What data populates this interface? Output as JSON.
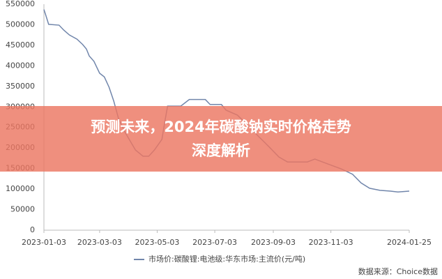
{
  "chart_data": {
    "type": "line",
    "x": [
      "2023-01-03",
      "2023-01-05",
      "2023-01-08",
      "2023-01-19",
      "2023-01-24",
      "2023-01-30",
      "2023-02-07",
      "2023-02-13",
      "2023-02-17",
      "2023-02-20",
      "2023-02-25",
      "2023-03-03",
      "2023-03-08",
      "2023-03-13",
      "2023-03-18",
      "2023-03-23",
      "2023-03-30",
      "2023-04-10",
      "2023-04-18",
      "2023-04-24",
      "2023-04-30",
      "2023-05-08",
      "2023-05-11",
      "2023-05-14",
      "2023-05-28",
      "2023-06-06",
      "2023-06-23",
      "2023-06-28",
      "2023-07-10",
      "2023-07-15",
      "2023-07-27",
      "2023-08-07",
      "2023-08-18",
      "2023-08-29",
      "2023-09-09",
      "2023-09-18",
      "2023-10-09",
      "2023-10-17",
      "2023-10-31",
      "2023-11-14",
      "2023-11-26",
      "2023-12-05",
      "2023-12-14",
      "2023-12-25",
      "2024-01-05",
      "2024-01-13",
      "2024-01-25"
    ],
    "series": [
      {
        "name": "市场价:碳酸锂:电池级:华东市场:主流价(元/吨)",
        "color": "#7186ab",
        "values": [
          537000,
          523000,
          501000,
          499000,
          487000,
          475000,
          465000,
          452000,
          441000,
          424000,
          411000,
          382000,
          373000,
          348000,
          314000,
          272000,
          238000,
          195000,
          180000,
          180000,
          195000,
          221000,
          263000,
          302000,
          302000,
          318000,
          318000,
          306000,
          306000,
          292000,
          280000,
          255000,
          229000,
          204000,
          178000,
          166000,
          166000,
          173000,
          161000,
          149000,
          136000,
          115000,
          102000,
          97000,
          95000,
          93000,
          95000
        ]
      }
    ],
    "xlim": [
      "2023-01-03",
      "2024-01-25"
    ],
    "xticks": [
      "2023-01-03",
      "2023-03-03",
      "2023-05-03",
      "2023-07-03",
      "2023-09-03",
      "2023-11-03",
      "2024-01-25"
    ],
    "ylim": [
      0,
      550000
    ],
    "yticks": [
      0,
      50000,
      100000,
      150000,
      200000,
      250000,
      300000,
      350000,
      400000,
      450000,
      500000,
      550000
    ],
    "grid": false,
    "source": "数据来源：Choice数据"
  },
  "banner": {
    "lines": [
      "预测未来，2024年碳酸钠实时价格走势",
      "深度解析"
    ]
  }
}
